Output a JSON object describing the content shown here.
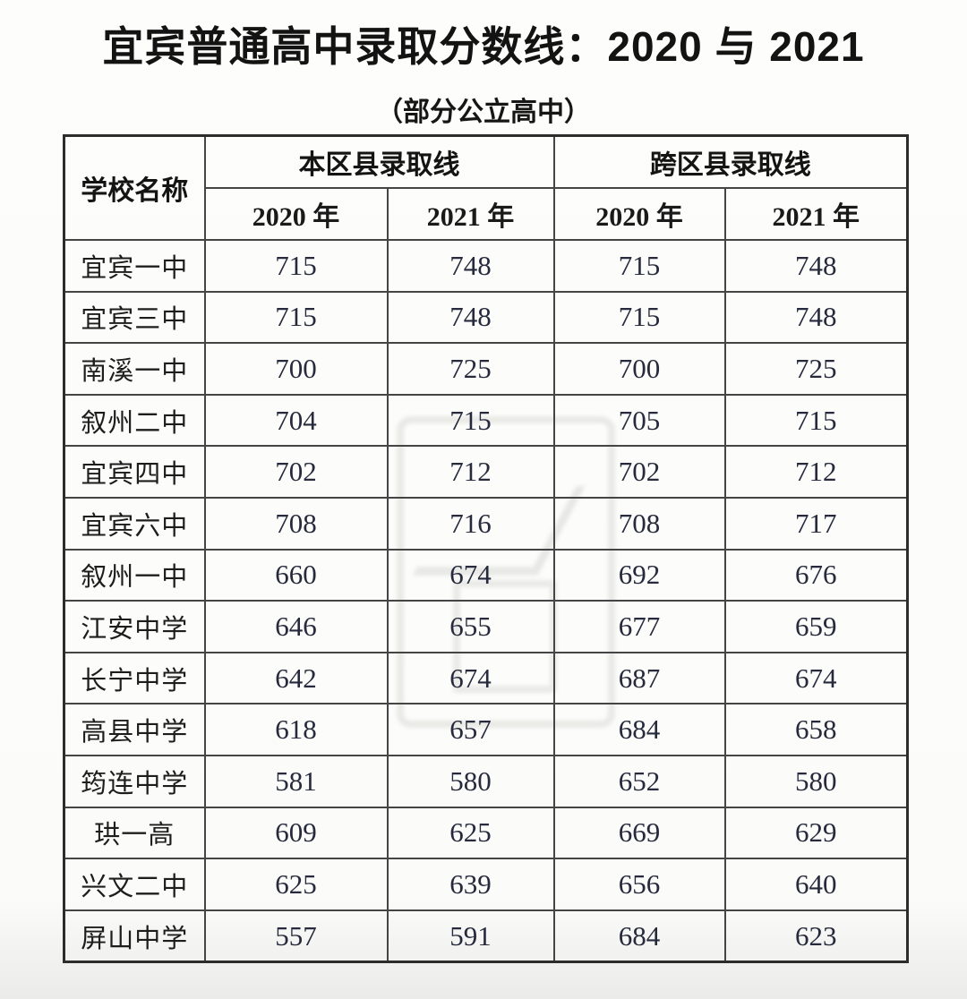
{
  "page": {
    "title": "宜宾普通高中录取分数线：2020 与 2021",
    "subtitle": "（部分公立高中）"
  },
  "table": {
    "school_column_header": "学校名称",
    "group_headers": [
      "本区县录取线",
      "跨区县录取线"
    ],
    "year_headers": [
      "2020 年",
      "2021 年",
      "2020 年",
      "2021 年"
    ],
    "rows": [
      {
        "school": "宜宾一中",
        "values": [
          "715",
          "748",
          "715",
          "748"
        ]
      },
      {
        "school": "宜宾三中",
        "values": [
          "715",
          "748",
          "715",
          "748"
        ]
      },
      {
        "school": "南溪一中",
        "values": [
          "700",
          "725",
          "700",
          "725"
        ]
      },
      {
        "school": "叙州二中",
        "values": [
          "704",
          "715",
          "705",
          "715"
        ]
      },
      {
        "school": "宜宾四中",
        "values": [
          "702",
          "712",
          "702",
          "712"
        ]
      },
      {
        "school": "宜宾六中",
        "values": [
          "708",
          "716",
          "708",
          "717"
        ]
      },
      {
        "school": "叙州一中",
        "values": [
          "660",
          "674",
          "692",
          "676"
        ]
      },
      {
        "school": "江安中学",
        "values": [
          "646",
          "655",
          "677",
          "659"
        ]
      },
      {
        "school": "长宁中学",
        "values": [
          "642",
          "674",
          "687",
          "674"
        ]
      },
      {
        "school": "高县中学",
        "values": [
          "618",
          "657",
          "684",
          "658"
        ]
      },
      {
        "school": "筠连中学",
        "values": [
          "581",
          "580",
          "652",
          "580"
        ]
      },
      {
        "school": "珙一高",
        "values": [
          "609",
          "625",
          "669",
          "629"
        ]
      },
      {
        "school": "兴文二中",
        "values": [
          "625",
          "639",
          "656",
          "640"
        ]
      },
      {
        "school": "屏山中学",
        "values": [
          "557",
          "591",
          "684",
          "623"
        ]
      }
    ]
  },
  "colors": {
    "border_outer": "#2d2d2d",
    "border_inner": "#454545",
    "score_text": "#262a3c",
    "title_text": "#131313",
    "background": "#fbfbf9"
  },
  "watermark": {
    "name": "faint-seal-watermark"
  }
}
